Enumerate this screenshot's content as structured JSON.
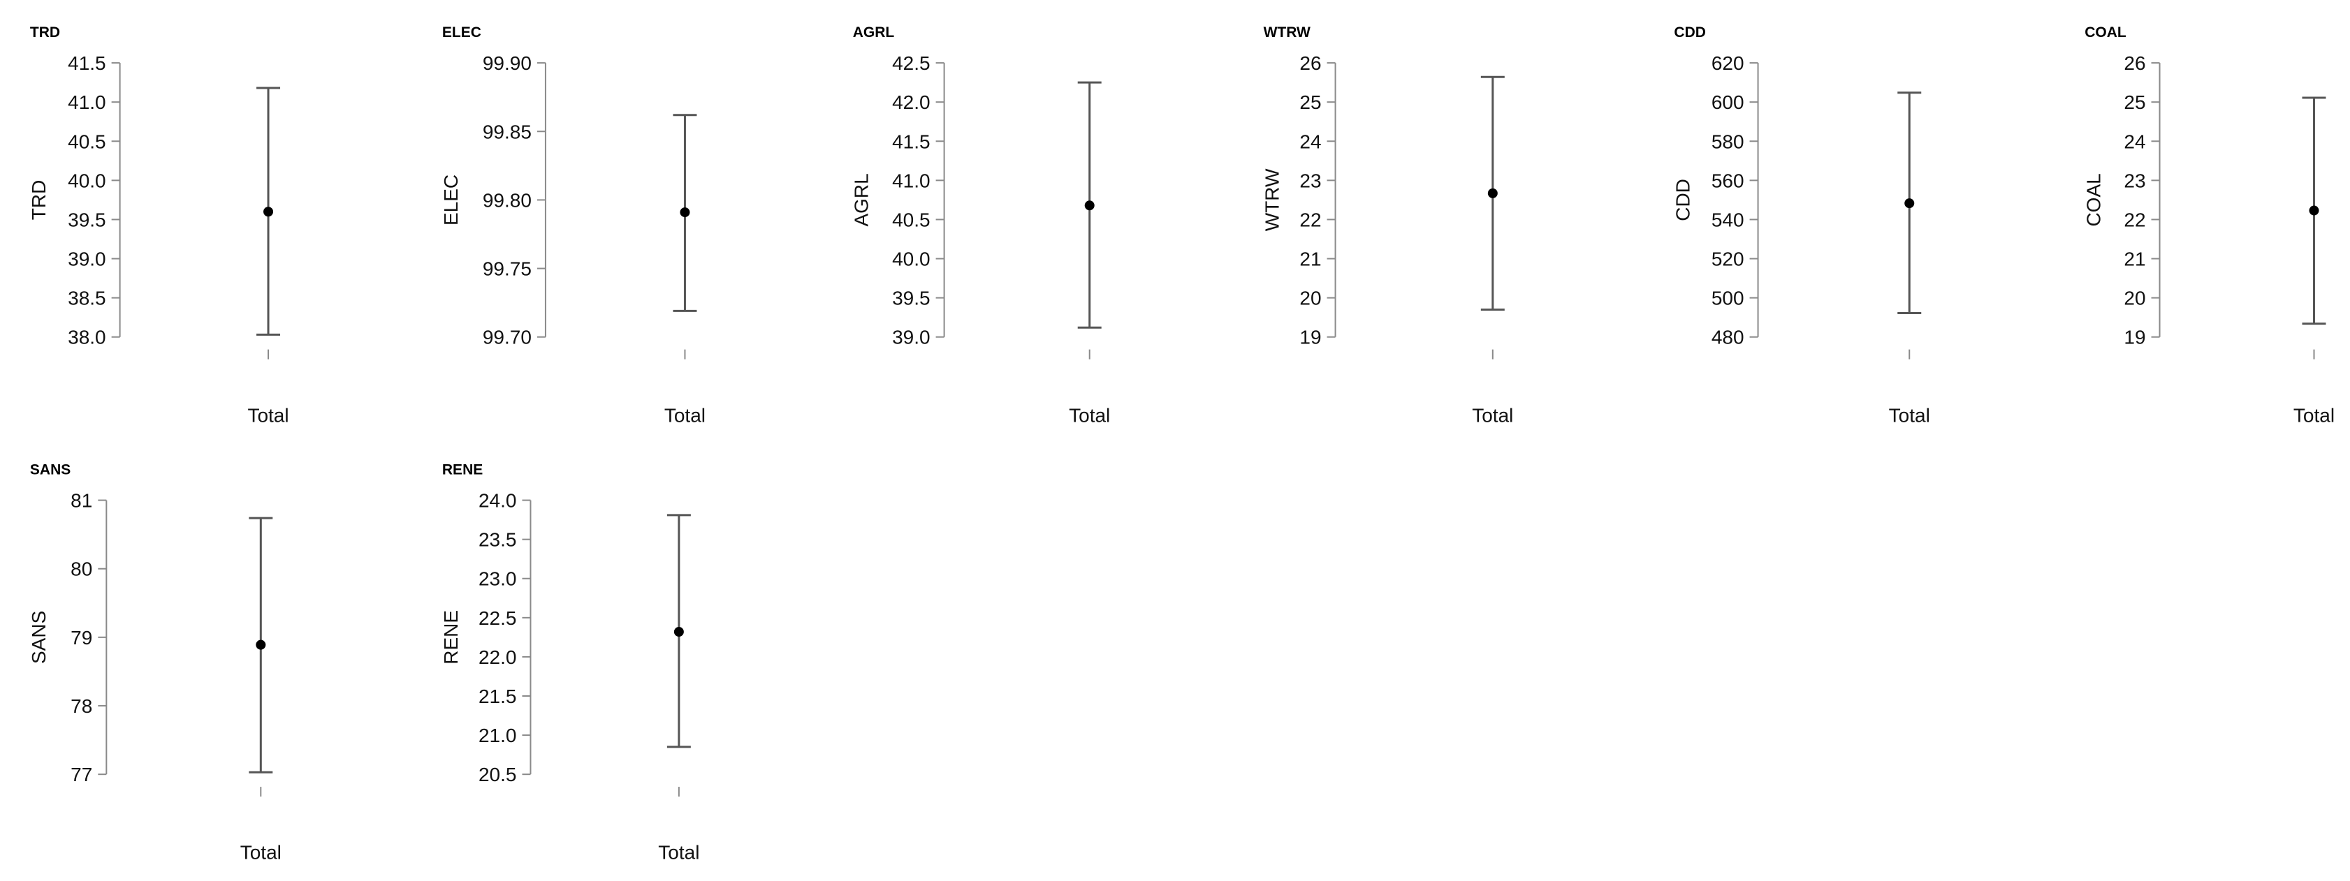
{
  "chart_data": [
    {
      "type": "errorbar",
      "title": "TRD",
      "ylabel": "TRD",
      "categories": [
        "Total"
      ],
      "yticks": [
        "38.0",
        "38.5",
        "39.0",
        "39.5",
        "40.0",
        "40.5",
        "41.0",
        "41.5"
      ],
      "ylim": [
        38.0,
        41.5
      ],
      "series": [
        {
          "mean": 39.6,
          "lower": 38.03,
          "upper": 41.18
        }
      ]
    },
    {
      "type": "errorbar",
      "title": "ELEC",
      "ylabel": "ELEC",
      "categories": [
        "Total"
      ],
      "yticks": [
        "99.70",
        "99.75",
        "99.80",
        "99.85",
        "99.90"
      ],
      "ylim": [
        99.7,
        99.9
      ],
      "series": [
        {
          "mean": 99.791,
          "lower": 99.719,
          "upper": 99.862
        }
      ]
    },
    {
      "type": "errorbar",
      "title": "AGRL",
      "ylabel": "AGRL",
      "categories": [
        "Total"
      ],
      "yticks": [
        "39.0",
        "39.5",
        "40.0",
        "40.5",
        "41.0",
        "41.5",
        "42.0",
        "42.5"
      ],
      "ylim": [
        39.0,
        42.5
      ],
      "series": [
        {
          "mean": 40.68,
          "lower": 39.12,
          "upper": 42.25
        }
      ]
    },
    {
      "type": "errorbar",
      "title": "WTRW",
      "ylabel": "WTRW",
      "categories": [
        "Total"
      ],
      "yticks": [
        "19",
        "20",
        "21",
        "22",
        "23",
        "24",
        "25",
        "26"
      ],
      "ylim": [
        19,
        26
      ],
      "series": [
        {
          "mean": 22.67,
          "lower": 19.7,
          "upper": 25.64
        }
      ]
    },
    {
      "type": "errorbar",
      "title": "CDD",
      "ylabel": "CDD",
      "categories": [
        "Total"
      ],
      "yticks": [
        "480",
        "500",
        "520",
        "540",
        "560",
        "580",
        "600",
        "620"
      ],
      "ylim": [
        480,
        620
      ],
      "series": [
        {
          "mean": 548.3,
          "lower": 492.2,
          "upper": 604.8
        }
      ]
    },
    {
      "type": "errorbar",
      "title": "COAL",
      "ylabel": "COAL",
      "categories": [
        "Total"
      ],
      "yticks": [
        "19",
        "20",
        "21",
        "22",
        "23",
        "24",
        "25",
        "26"
      ],
      "ylim": [
        19,
        26
      ],
      "series": [
        {
          "mean": 22.23,
          "lower": 19.34,
          "upper": 25.11
        }
      ]
    },
    {
      "type": "errorbar",
      "title": "SANS",
      "ylabel": "SANS",
      "categories": [
        "Total"
      ],
      "yticks": [
        "77",
        "78",
        "79",
        "80",
        "81"
      ],
      "ylim": [
        77,
        81
      ],
      "series": [
        {
          "mean": 78.89,
          "lower": 77.03,
          "upper": 80.74
        }
      ]
    },
    {
      "type": "errorbar",
      "title": "RENE",
      "ylabel": "RENE",
      "categories": [
        "Total"
      ],
      "yticks": [
        "20.5",
        "21.0",
        "21.5",
        "22.0",
        "22.5",
        "23.0",
        "23.5",
        "24.0"
      ],
      "ylim": [
        20.5,
        24.0
      ],
      "series": [
        {
          "mean": 22.32,
          "lower": 20.85,
          "upper": 23.81
        }
      ]
    }
  ]
}
